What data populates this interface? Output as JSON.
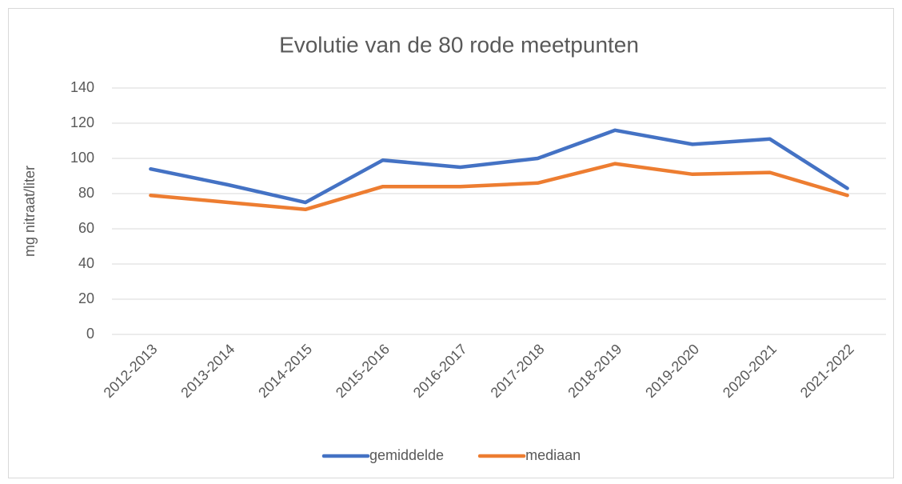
{
  "chart_data": {
    "type": "line",
    "title": "Evolutie van de 80 rode meetpunten",
    "y_label": "mg nitraat/liter",
    "categories": [
      "2012-2013",
      "2013-2014",
      "2014-2015",
      "2015-2016",
      "2016-2017",
      "2017-2018",
      "2018-2019",
      "2019-2020",
      "2020-2021",
      "2021-2022"
    ],
    "series": [
      {
        "name": "gemiddelde",
        "color": "#4472c4",
        "values": [
          94,
          85,
          75,
          99,
          95,
          100,
          116,
          108,
          111,
          83
        ]
      },
      {
        "name": "mediaan",
        "color": "#ed7d31",
        "values": [
          79,
          75,
          71,
          84,
          84,
          86,
          97,
          91,
          92,
          79
        ]
      }
    ],
    "ylim": [
      0,
      140
    ],
    "yticks": [
      0,
      20,
      40,
      60,
      80,
      100,
      120,
      140
    ],
    "grid": true,
    "legend": "bottom"
  }
}
